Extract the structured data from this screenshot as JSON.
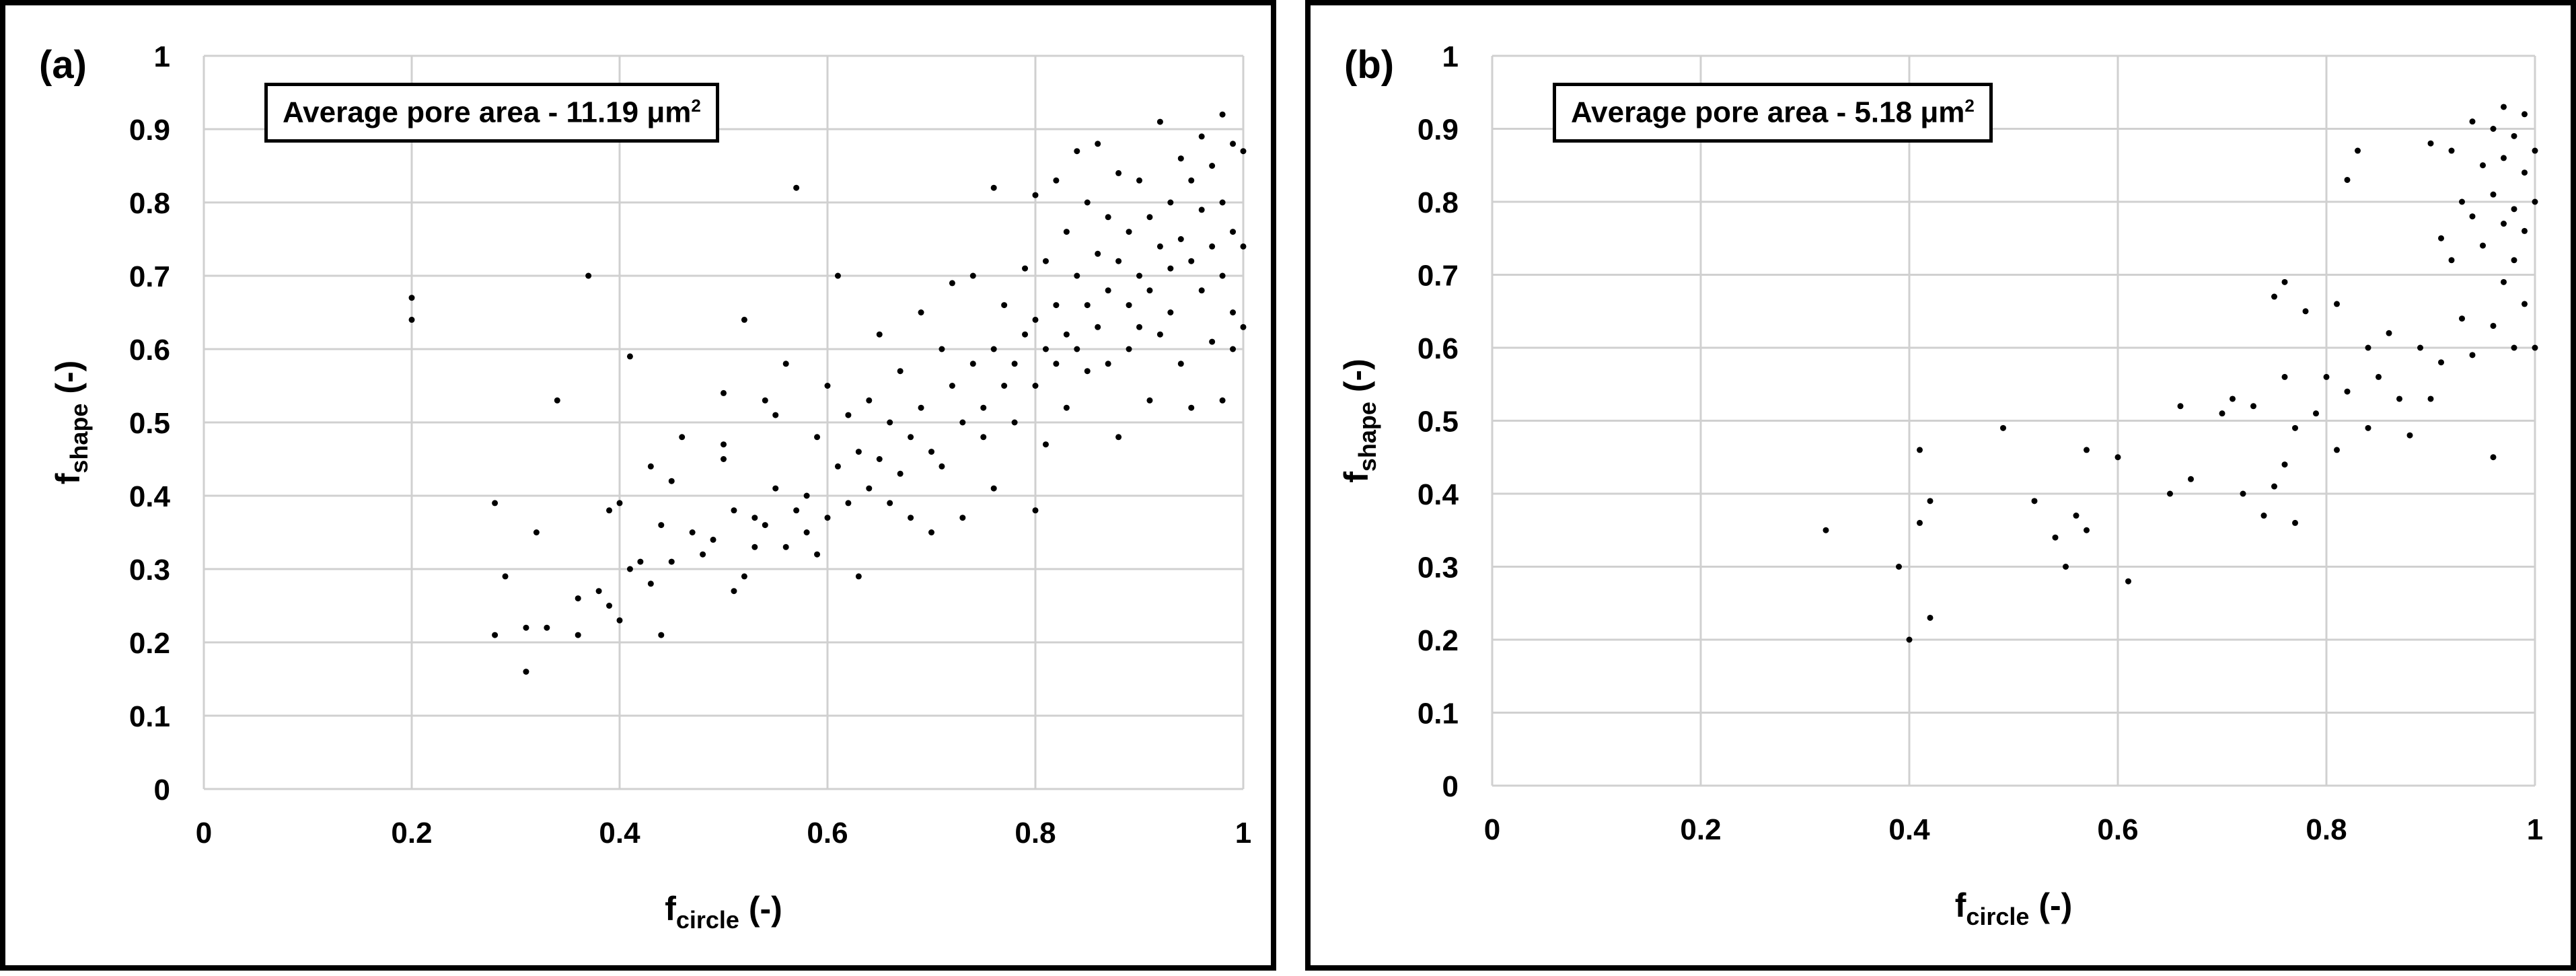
{
  "chart_data": [
    {
      "type": "scatter",
      "panel_label": "(a)",
      "annotation": {
        "text": "Average pore area - 11.19 μm",
        "superscript": "2"
      },
      "xlabel": {
        "main": "f",
        "subscript": "circle",
        "unit": " (-)"
      },
      "ylabel": {
        "main": "f",
        "subscript": "shape",
        "unit": " (-)"
      },
      "xlim": [
        0,
        1
      ],
      "ylim": [
        0,
        1
      ],
      "xticks": [
        "0",
        "0.2",
        "0.4",
        "0.6",
        "0.8",
        "1"
      ],
      "yticks": [
        "0",
        "0.1",
        "0.2",
        "0.3",
        "0.4",
        "0.5",
        "0.6",
        "0.7",
        "0.8",
        "0.9",
        "1"
      ],
      "grid": true,
      "marker_color": "#000000",
      "points": [
        [
          0.2,
          0.67
        ],
        [
          0.2,
          0.64
        ],
        [
          0.28,
          0.39
        ],
        [
          0.28,
          0.21
        ],
        [
          0.29,
          0.29
        ],
        [
          0.31,
          0.16
        ],
        [
          0.31,
          0.22
        ],
        [
          0.32,
          0.35
        ],
        [
          0.33,
          0.22
        ],
        [
          0.34,
          0.53
        ],
        [
          0.36,
          0.26
        ],
        [
          0.36,
          0.21
        ],
        [
          0.37,
          0.7
        ],
        [
          0.38,
          0.27
        ],
        [
          0.39,
          0.25
        ],
        [
          0.39,
          0.38
        ],
        [
          0.4,
          0.23
        ],
        [
          0.4,
          0.39
        ],
        [
          0.41,
          0.59
        ],
        [
          0.41,
          0.3
        ],
        [
          0.42,
          0.31
        ],
        [
          0.43,
          0.44
        ],
        [
          0.43,
          0.28
        ],
        [
          0.44,
          0.36
        ],
        [
          0.44,
          0.21
        ],
        [
          0.45,
          0.31
        ],
        [
          0.45,
          0.42
        ],
        [
          0.46,
          0.48
        ],
        [
          0.47,
          0.35
        ],
        [
          0.48,
          0.32
        ],
        [
          0.49,
          0.34
        ],
        [
          0.5,
          0.47
        ],
        [
          0.5,
          0.45
        ],
        [
          0.5,
          0.54
        ],
        [
          0.51,
          0.38
        ],
        [
          0.51,
          0.27
        ],
        [
          0.52,
          0.64
        ],
        [
          0.52,
          0.29
        ],
        [
          0.53,
          0.33
        ],
        [
          0.53,
          0.37
        ],
        [
          0.54,
          0.53
        ],
        [
          0.54,
          0.36
        ],
        [
          0.55,
          0.51
        ],
        [
          0.55,
          0.41
        ],
        [
          0.56,
          0.58
        ],
        [
          0.56,
          0.33
        ],
        [
          0.57,
          0.82
        ],
        [
          0.57,
          0.38
        ],
        [
          0.58,
          0.35
        ],
        [
          0.58,
          0.4
        ],
        [
          0.59,
          0.48
        ],
        [
          0.59,
          0.32
        ],
        [
          0.6,
          0.55
        ],
        [
          0.6,
          0.37
        ],
        [
          0.61,
          0.7
        ],
        [
          0.61,
          0.44
        ],
        [
          0.62,
          0.39
        ],
        [
          0.62,
          0.51
        ],
        [
          0.63,
          0.46
        ],
        [
          0.63,
          0.29
        ],
        [
          0.64,
          0.53
        ],
        [
          0.64,
          0.41
        ],
        [
          0.65,
          0.62
        ],
        [
          0.65,
          0.45
        ],
        [
          0.66,
          0.5
        ],
        [
          0.66,
          0.39
        ],
        [
          0.67,
          0.57
        ],
        [
          0.67,
          0.43
        ],
        [
          0.68,
          0.48
        ],
        [
          0.68,
          0.37
        ],
        [
          0.69,
          0.65
        ],
        [
          0.69,
          0.52
        ],
        [
          0.7,
          0.46
        ],
        [
          0.7,
          0.35
        ],
        [
          0.71,
          0.6
        ],
        [
          0.71,
          0.44
        ],
        [
          0.72,
          0.55
        ],
        [
          0.72,
          0.69
        ],
        [
          0.73,
          0.5
        ],
        [
          0.73,
          0.37
        ],
        [
          0.74,
          0.58
        ],
        [
          0.74,
          0.7
        ],
        [
          0.75,
          0.52
        ],
        [
          0.75,
          0.48
        ],
        [
          0.76,
          0.82
        ],
        [
          0.76,
          0.6
        ],
        [
          0.76,
          0.41
        ],
        [
          0.77,
          0.55
        ],
        [
          0.77,
          0.66
        ],
        [
          0.78,
          0.58
        ],
        [
          0.78,
          0.5
        ],
        [
          0.79,
          0.62
        ],
        [
          0.79,
          0.71
        ],
        [
          0.8,
          0.38
        ],
        [
          0.8,
          0.81
        ],
        [
          0.8,
          0.64
        ],
        [
          0.8,
          0.55
        ],
        [
          0.81,
          0.72
        ],
        [
          0.81,
          0.6
        ],
        [
          0.81,
          0.47
        ],
        [
          0.82,
          0.83
        ],
        [
          0.82,
          0.66
        ],
        [
          0.82,
          0.58
        ],
        [
          0.83,
          0.76
        ],
        [
          0.83,
          0.62
        ],
        [
          0.83,
          0.52
        ],
        [
          0.84,
          0.87
        ],
        [
          0.84,
          0.7
        ],
        [
          0.84,
          0.6
        ],
        [
          0.85,
          0.8
        ],
        [
          0.85,
          0.66
        ],
        [
          0.85,
          0.57
        ],
        [
          0.86,
          0.88
        ],
        [
          0.86,
          0.73
        ],
        [
          0.86,
          0.63
        ],
        [
          0.87,
          0.78
        ],
        [
          0.87,
          0.68
        ],
        [
          0.87,
          0.58
        ],
        [
          0.88,
          0.84
        ],
        [
          0.88,
          0.72
        ],
        [
          0.88,
          0.48
        ],
        [
          0.89,
          0.76
        ],
        [
          0.89,
          0.66
        ],
        [
          0.89,
          0.6
        ],
        [
          0.9,
          0.83
        ],
        [
          0.9,
          0.7
        ],
        [
          0.9,
          0.63
        ],
        [
          0.91,
          0.78
        ],
        [
          0.91,
          0.68
        ],
        [
          0.91,
          0.53
        ],
        [
          0.92,
          0.91
        ],
        [
          0.92,
          0.74
        ],
        [
          0.92,
          0.62
        ],
        [
          0.93,
          0.8
        ],
        [
          0.93,
          0.71
        ],
        [
          0.93,
          0.65
        ],
        [
          0.94,
          0.86
        ],
        [
          0.94,
          0.75
        ],
        [
          0.94,
          0.58
        ],
        [
          0.95,
          0.83
        ],
        [
          0.95,
          0.72
        ],
        [
          0.95,
          0.52
        ],
        [
          0.96,
          0.89
        ],
        [
          0.96,
          0.79
        ],
        [
          0.96,
          0.68
        ],
        [
          0.97,
          0.85
        ],
        [
          0.97,
          0.74
        ],
        [
          0.97,
          0.61
        ],
        [
          0.98,
          0.92
        ],
        [
          0.98,
          0.8
        ],
        [
          0.98,
          0.7
        ],
        [
          0.98,
          0.53
        ],
        [
          0.99,
          0.88
        ],
        [
          0.99,
          0.76
        ],
        [
          0.99,
          0.65
        ],
        [
          0.99,
          0.6
        ],
        [
          1.0,
          0.87
        ],
        [
          1.0,
          0.74
        ],
        [
          1.0,
          0.63
        ]
      ]
    },
    {
      "type": "scatter",
      "panel_label": "(b)",
      "annotation": {
        "text": "Average pore area - 5.18 μm",
        "superscript": "2"
      },
      "xlabel": {
        "main": "f",
        "subscript": "circle",
        "unit": " (-)"
      },
      "ylabel": {
        "main": "f",
        "subscript": "shape",
        "unit": " (-)"
      },
      "xlim": [
        0,
        1
      ],
      "ylim": [
        0,
        1
      ],
      "xticks": [
        "0",
        "0.2",
        "0.4",
        "0.6",
        "0.8",
        "1"
      ],
      "yticks": [
        "0",
        "0.1",
        "0.2",
        "0.3",
        "0.4",
        "0.5",
        "0.6",
        "0.7",
        "0.8",
        "0.9",
        "1"
      ],
      "grid": true,
      "marker_color": "#000000",
      "points": [
        [
          0.32,
          0.35
        ],
        [
          0.39,
          0.3
        ],
        [
          0.4,
          0.2
        ],
        [
          0.41,
          0.36
        ],
        [
          0.41,
          0.46
        ],
        [
          0.42,
          0.39
        ],
        [
          0.42,
          0.23
        ],
        [
          0.49,
          0.49
        ],
        [
          0.52,
          0.39
        ],
        [
          0.54,
          0.34
        ],
        [
          0.55,
          0.3
        ],
        [
          0.56,
          0.37
        ],
        [
          0.57,
          0.46
        ],
        [
          0.57,
          0.35
        ],
        [
          0.6,
          0.45
        ],
        [
          0.61,
          0.28
        ],
        [
          0.65,
          0.4
        ],
        [
          0.66,
          0.52
        ],
        [
          0.67,
          0.42
        ],
        [
          0.7,
          0.51
        ],
        [
          0.71,
          0.53
        ],
        [
          0.72,
          0.4
        ],
        [
          0.73,
          0.52
        ],
        [
          0.74,
          0.37
        ],
        [
          0.75,
          0.67
        ],
        [
          0.75,
          0.41
        ],
        [
          0.76,
          0.44
        ],
        [
          0.76,
          0.56
        ],
        [
          0.76,
          0.69
        ],
        [
          0.77,
          0.36
        ],
        [
          0.77,
          0.49
        ],
        [
          0.78,
          0.65
        ],
        [
          0.79,
          0.51
        ],
        [
          0.8,
          0.56
        ],
        [
          0.81,
          0.46
        ],
        [
          0.81,
          0.66
        ],
        [
          0.82,
          0.83
        ],
        [
          0.82,
          0.54
        ],
        [
          0.83,
          0.87
        ],
        [
          0.84,
          0.6
        ],
        [
          0.84,
          0.49
        ],
        [
          0.85,
          0.56
        ],
        [
          0.86,
          0.62
        ],
        [
          0.87,
          0.53
        ],
        [
          0.88,
          0.48
        ],
        [
          0.89,
          0.6
        ],
        [
          0.9,
          0.88
        ],
        [
          0.9,
          0.53
        ],
        [
          0.91,
          0.75
        ],
        [
          0.91,
          0.58
        ],
        [
          0.92,
          0.87
        ],
        [
          0.92,
          0.72
        ],
        [
          0.93,
          0.8
        ],
        [
          0.93,
          0.64
        ],
        [
          0.94,
          0.91
        ],
        [
          0.94,
          0.78
        ],
        [
          0.94,
          0.59
        ],
        [
          0.95,
          0.85
        ],
        [
          0.95,
          0.74
        ],
        [
          0.96,
          0.9
        ],
        [
          0.96,
          0.81
        ],
        [
          0.96,
          0.63
        ],
        [
          0.96,
          0.45
        ],
        [
          0.97,
          0.93
        ],
        [
          0.97,
          0.86
        ],
        [
          0.97,
          0.77
        ],
        [
          0.97,
          0.69
        ],
        [
          0.98,
          0.89
        ],
        [
          0.98,
          0.79
        ],
        [
          0.98,
          0.72
        ],
        [
          0.98,
          0.6
        ],
        [
          0.99,
          0.92
        ],
        [
          0.99,
          0.84
        ],
        [
          0.99,
          0.76
        ],
        [
          0.99,
          0.66
        ],
        [
          1.0,
          0.87
        ],
        [
          1.0,
          0.8
        ],
        [
          1.0,
          0.6
        ]
      ]
    }
  ]
}
